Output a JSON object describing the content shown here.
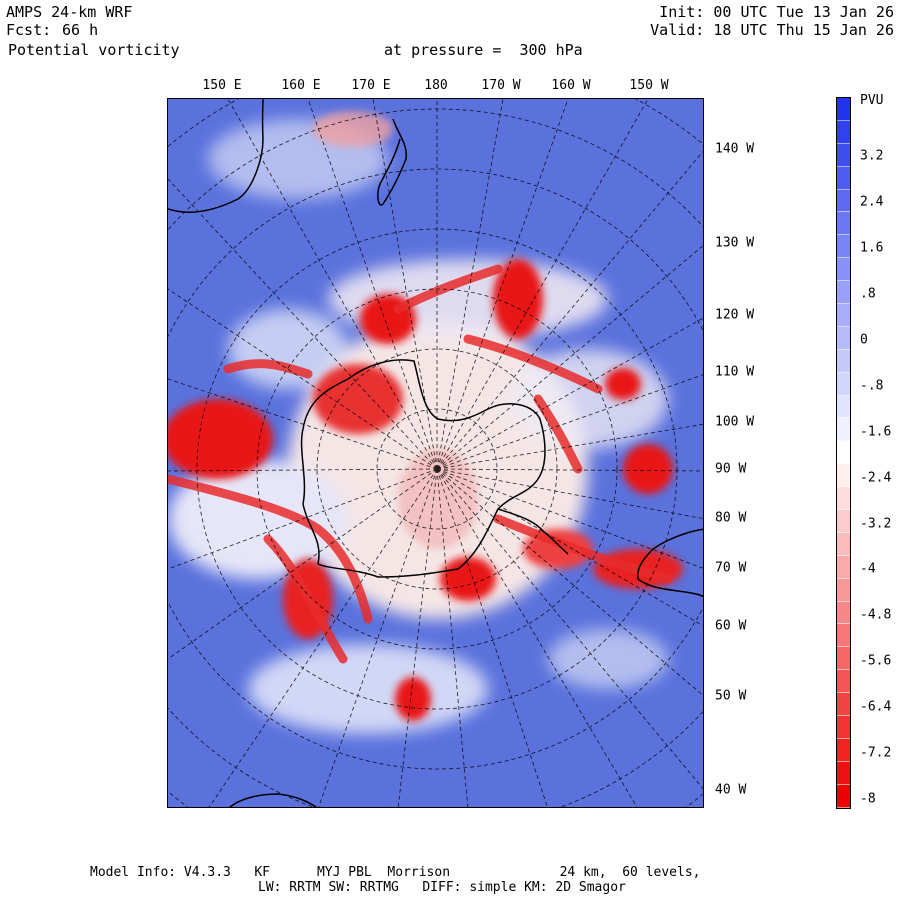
{
  "header": {
    "model": "AMPS 24-km WRF",
    "fcst_label": "Fcst:",
    "fcst_value": "66 h",
    "field": "Potential vorticity",
    "level": "at pressure =  300 hPa",
    "init": "Init: 00 UTC Tue 13 Jan 26",
    "valid": "Valid: 18 UTC Thu 15 Jan 26"
  },
  "map": {
    "longitude_labels_top": [
      "150 E",
      "160 E",
      "170 E",
      "180",
      "170 W",
      "160 W",
      "150 W"
    ],
    "longitude_labels_right": [
      "140 W",
      "130 W",
      "120 W",
      "110 W",
      "100 W",
      "90 W",
      "80 W",
      "70 W",
      "60 W",
      "50 W",
      "40 W"
    ]
  },
  "colorbar": {
    "unit": "PVU",
    "labels": [
      "3.2",
      "2.4",
      "1.6",
      ".8",
      "0",
      "-.8",
      "-1.6",
      "-2.4",
      "-3.2",
      "-4",
      "-4.8",
      "-5.6",
      "-6.4",
      "-7.2",
      "-8"
    ],
    "colors": {
      "positive_max": "#2233ee",
      "zero": "#ffffff",
      "negative_max": "#ee0000"
    }
  },
  "footer": {
    "line1": "Model Info: V4.3.3   KF      MYJ PBL  Morrison              24 km,  60 levels,",
    "line2": "LW: RRTM SW: RRTMG   DIFF: simple KM: 2D Smagor"
  },
  "colors": {
    "background_field": "#5b72dd",
    "high_pv": "#e81818",
    "coastline": "#000000",
    "grid": "#000000"
  }
}
